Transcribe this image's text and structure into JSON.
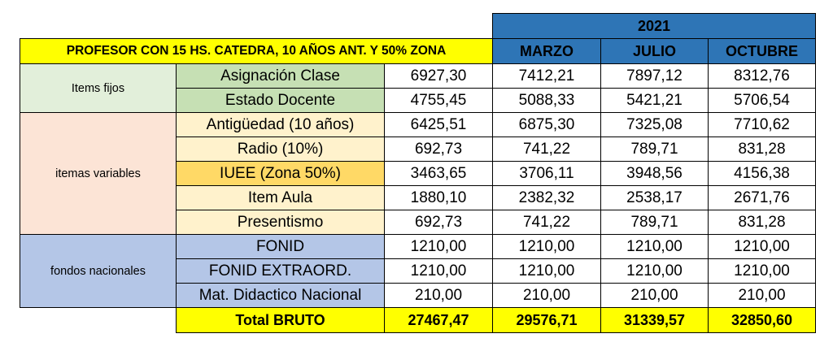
{
  "header": {
    "year": "2021",
    "title": "PROFESOR CON 15 HS. CATEDRA, 10 AÑOS ANT. Y 50% ZONA",
    "months": [
      "MARZO",
      "JULIO",
      "OCTUBRE"
    ]
  },
  "groups": {
    "fixed": "Items fijos",
    "variable": "itemas variables",
    "national": "fondos nacionales"
  },
  "rows": [
    {
      "label": "Asignación Clase",
      "base": "6927,30",
      "v": [
        "7412,21",
        "7897,12",
        "8312,76"
      ]
    },
    {
      "label": "Estado Docente",
      "base": "4755,45",
      "v": [
        "5088,33",
        "5421,21",
        "5706,54"
      ]
    },
    {
      "label": "Antigüedad (10 años)",
      "base": "6425,51",
      "v": [
        "6875,30",
        "7325,08",
        "7710,62"
      ]
    },
    {
      "label": "Radio (10%)",
      "base": "692,73",
      "v": [
        "741,22",
        "789,71",
        "831,28"
      ]
    },
    {
      "label": "IUEE (Zona 50%)",
      "base": "3463,65",
      "v": [
        "3706,11",
        "3948,56",
        "4156,38"
      ]
    },
    {
      "label": "Item Aula",
      "base": "1880,10",
      "v": [
        "2382,32",
        "2538,17",
        "2671,76"
      ]
    },
    {
      "label": "Presentismo",
      "base": "692,73",
      "v": [
        "741,22",
        "789,71",
        "831,28"
      ]
    },
    {
      "label": "FONID",
      "base": "1210,00",
      "v": [
        "1210,00",
        "1210,00",
        "1210,00"
      ]
    },
    {
      "label": "FONID EXTRAORD.",
      "base": "1210,00",
      "v": [
        "1210,00",
        "1210,00",
        "1210,00"
      ]
    },
    {
      "label": "Mat. Didactico Nacional",
      "base": "210,00",
      "v": [
        "210,00",
        "210,00",
        "210,00"
      ]
    }
  ],
  "total": {
    "label": "Total BRUTO",
    "base": "27467,47",
    "v": [
      "29576,71",
      "31339,57",
      "32850,60"
    ]
  },
  "colors": {
    "yellow": "#ffff00",
    "blue_header": "#2e75b6",
    "green": "#c6e0b4",
    "cream": "#fff2cc",
    "gold": "#ffd966",
    "blue": "#b4c6e7"
  }
}
